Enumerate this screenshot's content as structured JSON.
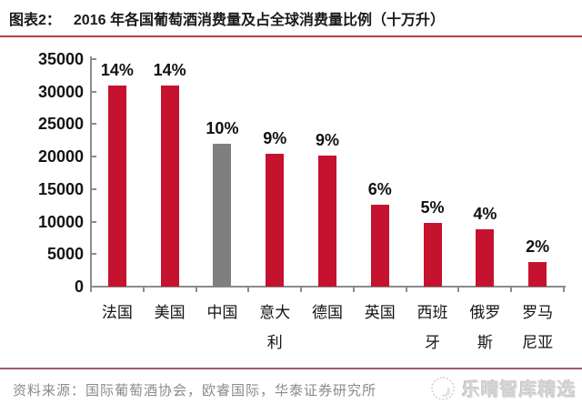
{
  "header": {
    "label": "图表2：",
    "title": "2016 年各国葡萄酒消费量及占全球消费量比例（十万升）"
  },
  "chart_data": {
    "type": "bar",
    "title": "2016 年各国葡萄酒消费量及占全球消费量比例（十万升）",
    "unit": "十万升",
    "categories": [
      "法国",
      "美国",
      "中国",
      "意大利",
      "德国",
      "英国",
      "西班牙",
      "俄罗斯",
      "罗马尼亚"
    ],
    "category_lines": [
      [
        "法国"
      ],
      [
        "美国"
      ],
      [
        "中国"
      ],
      [
        "意大",
        "利"
      ],
      [
        "德国"
      ],
      [
        "英国"
      ],
      [
        "西班",
        "牙"
      ],
      [
        "俄罗",
        "斯"
      ],
      [
        "罗马",
        "尼亚"
      ]
    ],
    "keys": [
      "france",
      "usa",
      "china",
      "italy",
      "germany",
      "uk",
      "spain",
      "russia",
      "romania"
    ],
    "values": [
      31000,
      31000,
      22000,
      20500,
      20200,
      12600,
      9800,
      8800,
      3800
    ],
    "percent_labels": [
      "14%",
      "14%",
      "10%",
      "9%",
      "9%",
      "6%",
      "5%",
      "4%",
      "2%"
    ],
    "bar_colors": [
      "#c4122f",
      "#c4122f",
      "#7f7f7f",
      "#c4122f",
      "#c4122f",
      "#c4122f",
      "#c4122f",
      "#c4122f",
      "#c4122f"
    ],
    "ylim": [
      0,
      35000
    ],
    "yticks": [
      0,
      5000,
      10000,
      15000,
      20000,
      25000,
      30000,
      35000
    ],
    "grid": false,
    "legend": "none"
  },
  "footer": {
    "source": "资料来源：国际葡萄酒协会，欧睿国际，华泰证券研究所",
    "watermark": "乐晴智库精选"
  },
  "colors": {
    "accent_red": "#c4122f",
    "china_gray": "#7f7f7f",
    "title_rule": "#b94043",
    "footer_rule": "#a05b6e",
    "axis_gray": "#8c8c8c",
    "watermark_gray": "#d6d6d6"
  }
}
